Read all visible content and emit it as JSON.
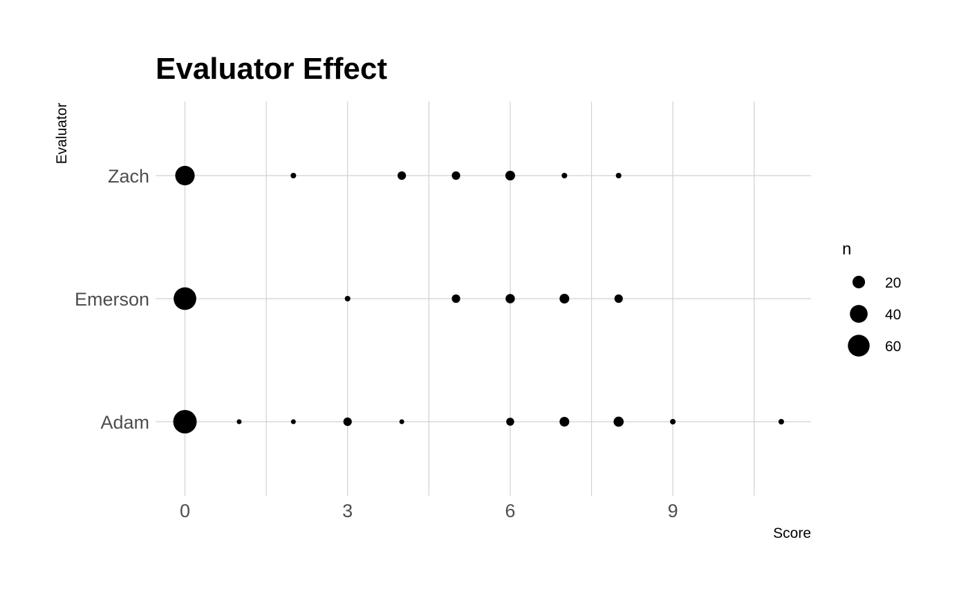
{
  "chart_data": {
    "type": "scatter",
    "title": "Evaluator Effect",
    "xlabel": "Score",
    "ylabel": "Evaluator",
    "xlim": [
      0,
      11
    ],
    "x_ticks": [
      0,
      3,
      6,
      9
    ],
    "categories": [
      "Adam",
      "Emerson",
      "Zach"
    ],
    "grid": true,
    "point_color": "#000000",
    "legend": {
      "title": "n",
      "position": "right",
      "entries": [
        {
          "label": "20",
          "value": 20
        },
        {
          "label": "40",
          "value": 40
        },
        {
          "label": "60",
          "value": 60
        }
      ]
    },
    "series": [
      {
        "category": "Zach",
        "points": [
          {
            "x": 0,
            "n": 48
          },
          {
            "x": 2,
            "n": 4
          },
          {
            "x": 4,
            "n": 9
          },
          {
            "x": 5,
            "n": 9
          },
          {
            "x": 6,
            "n": 12
          },
          {
            "x": 7,
            "n": 4
          },
          {
            "x": 8,
            "n": 4
          }
        ]
      },
      {
        "category": "Emerson",
        "points": [
          {
            "x": 0,
            "n": 65
          },
          {
            "x": 3,
            "n": 4
          },
          {
            "x": 5,
            "n": 9
          },
          {
            "x": 6,
            "n": 11
          },
          {
            "x": 7,
            "n": 12
          },
          {
            "x": 8,
            "n": 9
          }
        ]
      },
      {
        "category": "Adam",
        "points": [
          {
            "x": 0,
            "n": 70
          },
          {
            "x": 1,
            "n": 3
          },
          {
            "x": 2,
            "n": 3
          },
          {
            "x": 3,
            "n": 9
          },
          {
            "x": 4,
            "n": 3
          },
          {
            "x": 6,
            "n": 8
          },
          {
            "x": 7,
            "n": 12
          },
          {
            "x": 8,
            "n": 13
          },
          {
            "x": 9,
            "n": 4
          },
          {
            "x": 11,
            "n": 4
          }
        ]
      }
    ]
  }
}
